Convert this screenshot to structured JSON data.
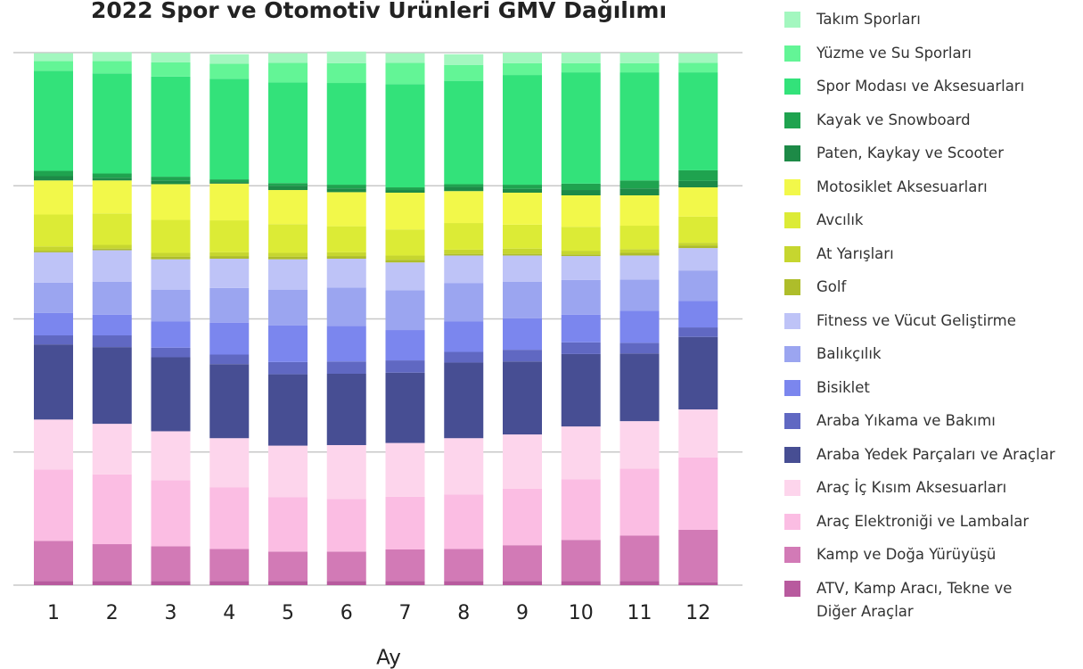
{
  "chart_data": {
    "type": "stacked_bar",
    "title": "2022 Spor ve Otomotiv Ürünleri GMV Dağılımı",
    "x_label": "Ay",
    "categories": [
      "1",
      "2",
      "3",
      "4",
      "5",
      "6",
      "7",
      "8",
      "9",
      "10",
      "11",
      "12"
    ],
    "ylim": [
      0,
      100
    ],
    "yticks": [
      0,
      25,
      50,
      75,
      100
    ],
    "grid": true,
    "legend": "right",
    "series": [
      {
        "name": "Takım Sporları",
        "color": "#a3f7bf",
        "values": [
          1.5,
          1.7,
          1.8,
          1.8,
          1.8,
          2.2,
          1.8,
          2.0,
          2.0,
          2.0,
          2.0,
          1.8
        ]
      },
      {
        "name": "Yüzme ve Su Sporları",
        "color": "#63f596",
        "values": [
          1.8,
          2.3,
          2.7,
          2.8,
          3.7,
          3.7,
          4.0,
          3.0,
          2.2,
          1.7,
          1.7,
          1.8
        ]
      },
      {
        "name": "Spor Modası ve Aksesuarları",
        "color": "#33e27a",
        "values": [
          18.8,
          18.8,
          18.8,
          18.9,
          18.9,
          19.1,
          19.4,
          19.4,
          20.6,
          20.9,
          20.3,
          18.4
        ]
      },
      {
        "name": "Kayak ve Snowboard",
        "color": "#1fa34f",
        "values": [
          1.0,
          0.8,
          0.7,
          0.5,
          0.5,
          0.7,
          0.5,
          0.5,
          0.8,
          1.2,
          1.5,
          2.0
        ]
      },
      {
        "name": "Paten, Kaykay ve Scooter",
        "color": "#1d8a47",
        "values": [
          0.8,
          0.5,
          0.7,
          0.3,
          0.8,
          0.7,
          0.5,
          0.8,
          0.7,
          1.0,
          1.3,
          1.2
        ]
      },
      {
        "name": "Motosiklet Aksesuarları",
        "color": "#f2f84a",
        "values": [
          6.4,
          6.2,
          6.7,
          6.9,
          6.4,
          6.4,
          6.9,
          6.0,
          6.0,
          5.9,
          5.7,
          5.5
        ]
      },
      {
        "name": "Avcılık",
        "color": "#dceb36",
        "values": [
          6.0,
          5.9,
          6.2,
          6.0,
          5.4,
          4.9,
          4.9,
          5.0,
          4.5,
          4.5,
          4.4,
          4.9
        ]
      },
      {
        "name": "At Yarışları",
        "color": "#c6d62f",
        "values": [
          0.8,
          0.7,
          0.7,
          0.7,
          0.7,
          0.7,
          0.8,
          0.8,
          1.0,
          0.7,
          0.7,
          0.5
        ]
      },
      {
        "name": "Golf",
        "color": "#aebd2a",
        "values": [
          0.3,
          0.3,
          0.5,
          0.5,
          0.5,
          0.5,
          0.5,
          0.3,
          0.3,
          0.3,
          0.5,
          0.5
        ]
      },
      {
        "name": "Fitness ve Vücut Geliştirme",
        "color": "#bec3f7",
        "values": [
          5.7,
          5.9,
          5.7,
          5.5,
          5.7,
          5.4,
          5.2,
          5.2,
          4.9,
          4.5,
          4.5,
          4.2
        ]
      },
      {
        "name": "Balıkçılık",
        "color": "#9ba5f0",
        "values": [
          5.7,
          6.2,
          6.0,
          6.5,
          6.7,
          7.2,
          7.5,
          7.2,
          6.9,
          6.5,
          5.9,
          5.7
        ]
      },
      {
        "name": "Bisiklet",
        "color": "#7b86ee",
        "values": [
          4.2,
          3.9,
          4.9,
          6.0,
          6.9,
          6.7,
          5.7,
          5.7,
          5.9,
          5.2,
          6.0,
          5.0
        ]
      },
      {
        "name": "Araba Yıkama ve Bakımı",
        "color": "#6068c2",
        "values": [
          1.7,
          2.2,
          1.8,
          1.8,
          2.3,
          2.3,
          2.3,
          2.0,
          2.2,
          2.2,
          2.0,
          1.8
        ]
      },
      {
        "name": "Araba Yedek Parçaları ve Araçlar",
        "color": "#474e93",
        "values": [
          14.1,
          14.4,
          13.9,
          13.9,
          13.4,
          13.4,
          13.2,
          14.2,
          13.7,
          13.6,
          12.7,
          13.6
        ]
      },
      {
        "name": "Araç İç Kısım Aksesuarları",
        "color": "#fdd5ec",
        "values": [
          9.4,
          9.5,
          9.2,
          9.2,
          9.7,
          10.1,
          10.1,
          10.6,
          10.2,
          9.9,
          8.9,
          9.0
        ]
      },
      {
        "name": "Araç Elektroniği ve Lambalar",
        "color": "#fbbde3",
        "values": [
          13.4,
          13.1,
          12.4,
          11.6,
          10.2,
          9.9,
          9.9,
          10.2,
          10.6,
          11.4,
          12.6,
          13.6
        ]
      },
      {
        "name": "Kamp ve Doğa Yürüyüşü",
        "color": "#d27ab6",
        "values": [
          7.5,
          6.9,
          6.5,
          6.0,
          5.5,
          5.5,
          5.9,
          6.0,
          6.7,
          7.7,
          8.5,
          9.9
        ]
      },
      {
        "name": "ATV, Kamp Aracı, Tekne ve Diğer Araçlar",
        "color": "#b85a9e",
        "values": [
          0.8,
          0.8,
          0.8,
          0.8,
          0.8,
          0.8,
          0.8,
          0.8,
          0.8,
          0.8,
          0.8,
          0.5
        ]
      }
    ]
  }
}
